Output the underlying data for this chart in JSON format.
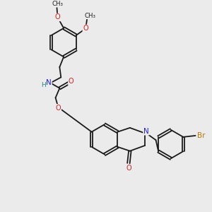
{
  "background_color": "#ebebeb",
  "bond_color": "#1a1a1a",
  "atom_colors": {
    "N": "#2222cc",
    "O": "#cc2222",
    "Br": "#bb7700",
    "H": "#228888",
    "C": "#1a1a1a"
  },
  "figsize": [
    3.0,
    3.0
  ],
  "dpi": 100
}
